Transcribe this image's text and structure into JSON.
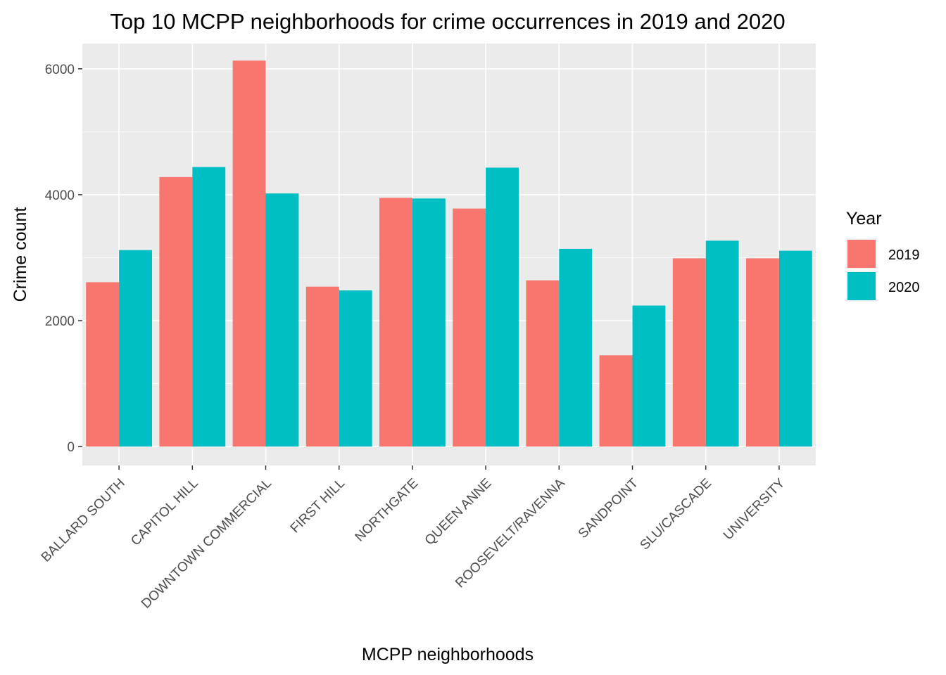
{
  "chart_data": {
    "type": "bar",
    "title": "Top 10 MCPP neighborhoods for crime occurrences in 2019 and 2020",
    "xlabel": "MCPP neighborhoods",
    "ylabel": "Crime count",
    "categories": [
      "BALLARD SOUTH",
      "CAPITOL HILL",
      "DOWNTOWN COMMERCIAL",
      "FIRST HILL",
      "NORTHGATE",
      "QUEEN ANNE",
      "ROOSEVELT/RAVENNA",
      "SANDPOINT",
      "SLU/CASCADE",
      "UNIVERSITY"
    ],
    "series": [
      {
        "name": "2019",
        "color": "#F8766D",
        "values": [
          2610,
          4280,
          6130,
          2540,
          3950,
          3780,
          2640,
          1450,
          2990,
          2990
        ]
      },
      {
        "name": "2020",
        "color": "#00BFC4",
        "values": [
          3120,
          4440,
          4020,
          2480,
          3940,
          4430,
          3140,
          2240,
          3270,
          3110
        ]
      }
    ],
    "ylim": [
      -300,
      6400
    ],
    "yticks": [
      0,
      2000,
      4000,
      6000
    ],
    "grid": true,
    "legend": {
      "title": "Year",
      "position": "right"
    },
    "panel_background": "#EBEBEB",
    "gridline_color": "#FFFFFF"
  }
}
